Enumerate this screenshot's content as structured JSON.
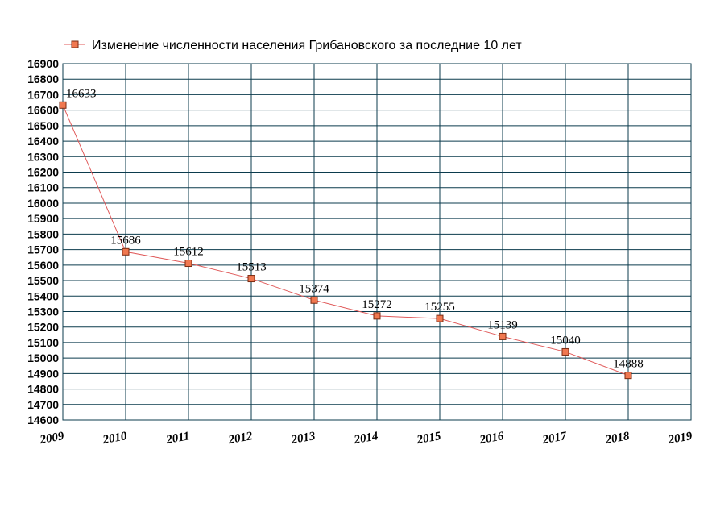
{
  "chart_data": {
    "type": "line",
    "title": "Изменение численности населения Грибановского за последние 10 лет",
    "x": [
      2009,
      2010,
      2011,
      2012,
      2013,
      2014,
      2015,
      2016,
      2017,
      2018
    ],
    "x_ticks": [
      "2009",
      "2010",
      "2011",
      "2012",
      "2013",
      "2014",
      "2015",
      "2016",
      "2017",
      "2018",
      "2019"
    ],
    "xlim": [
      2009,
      2019
    ],
    "ylim": [
      14600,
      16900
    ],
    "y_step": 100,
    "grid": true,
    "legend_position": "top-left",
    "series": [
      {
        "name": "Изменение численности населения Грибановского за последние 10 лет",
        "values": [
          16633,
          15686,
          15612,
          15513,
          15374,
          15272,
          15255,
          15139,
          15040,
          14888
        ],
        "labels": [
          "16633",
          "15686",
          "15612",
          "15513",
          "15374",
          "15272",
          "15255",
          "15139",
          "15040",
          "14888"
        ]
      }
    ],
    "colors": {
      "line": "#e05a5a",
      "marker_fill": "#f07850",
      "marker_stroke": "#7a2a10",
      "grid": "#0b3b4d"
    }
  }
}
